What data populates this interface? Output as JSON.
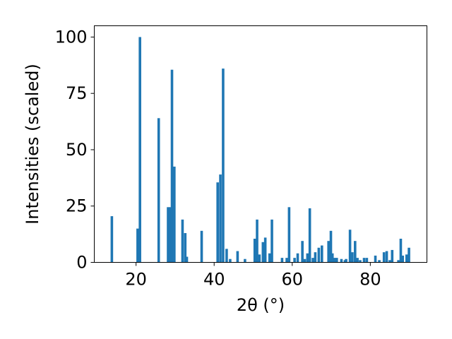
{
  "chart_data": {
    "type": "bar",
    "title": "",
    "xlabel": "2θ (°)",
    "ylabel": "Intensities (scaled)",
    "xlim": [
      9.3,
      94.5
    ],
    "ylim": [
      0,
      105
    ],
    "xticks": [
      20,
      40,
      60,
      80
    ],
    "yticks": [
      0,
      25,
      50,
      75,
      100
    ],
    "grid": false,
    "bar_color": "#1f77b4",
    "bar_width": 0.65,
    "x": [
      13.8,
      20.4,
      21.0,
      25.8,
      28.2,
      28.7,
      29.2,
      29.8,
      31.9,
      32.6,
      33.0,
      36.8,
      40.9,
      41.6,
      42.3,
      43.2,
      44.1,
      46.0,
      47.9,
      50.4,
      51.0,
      51.6,
      52.5,
      53.1,
      54.2,
      54.8,
      57.4,
      58.6,
      59.2,
      60.6,
      61.4,
      62.6,
      63.2,
      63.9,
      64.5,
      65.3,
      65.9,
      66.8,
      67.6,
      69.3,
      69.9,
      70.3,
      70.9,
      71.4,
      72.6,
      73.5,
      73.8,
      74.8,
      75.4,
      76.1,
      76.7,
      77.4,
      78.4,
      79.1,
      81.3,
      82.3,
      83.5,
      84.2,
      85.0,
      85.6,
      87.2,
      87.8,
      88.3,
      89.3,
      89.9
    ],
    "values": [
      20.5,
      15,
      100,
      64,
      24.5,
      24.5,
      85.5,
      42.5,
      19,
      13,
      2.5,
      14,
      35.5,
      39,
      86,
      6,
      1.5,
      5,
      1.5,
      10.5,
      19,
      3.5,
      9,
      11,
      4,
      19,
      2,
      2,
      24.5,
      2,
      4,
      9.5,
      1.5,
      4,
      24,
      2,
      4.5,
      6.5,
      7.5,
      9.5,
      14,
      4,
      2,
      2,
      1.5,
      1,
      1.5,
      14.5,
      4.5,
      9.5,
      2,
      1,
      2,
      2,
      3,
      1,
      4.5,
      5,
      1,
      5.5,
      1,
      10.5,
      3,
      3.5,
      6.5
    ]
  }
}
